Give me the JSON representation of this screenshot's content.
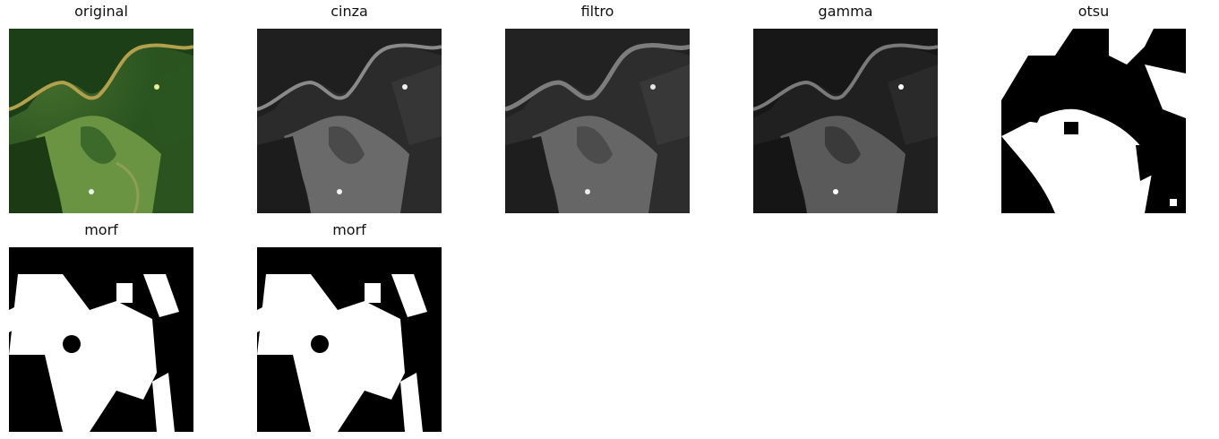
{
  "panels": [
    {
      "title": "original",
      "image": "satellite-rgb",
      "kind": "rgb"
    },
    {
      "title": "cinza",
      "image": "grayscale",
      "kind": "gray"
    },
    {
      "title": "filtro",
      "image": "filtered-grayscale",
      "kind": "gray"
    },
    {
      "title": "gamma",
      "image": "gamma-corrected-grayscale",
      "kind": "gamma"
    },
    {
      "title": "otsu",
      "image": "otsu-binary-mask",
      "kind": "otsu"
    },
    {
      "title": "morf",
      "image": "morphology-mask",
      "kind": "morf"
    },
    {
      "title": "morf",
      "image": "morphology-mask",
      "kind": "morf"
    }
  ]
}
